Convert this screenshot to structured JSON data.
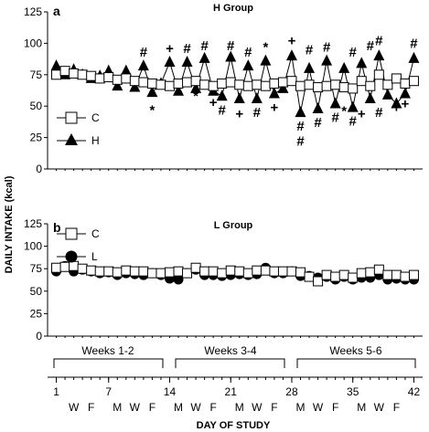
{
  "figure": {
    "ylabel": "DAILY INTAKE  (kcal)",
    "xlabel": "DAY OF STUDY",
    "x_ticks": [
      "1",
      "7",
      "14",
      "21",
      "28",
      "35",
      "42"
    ],
    "weekday_labels": [
      "W",
      "F",
      "M",
      "W",
      "F",
      "M",
      "W",
      "F",
      "M",
      "W",
      "F",
      "M"
    ],
    "week_blocks": [
      "Weeks 1-2",
      "Weeks 3-4",
      "Weeks 5-6"
    ]
  },
  "chart_data": [
    {
      "type": "line",
      "panel": "a",
      "title": "H Group",
      "ylim": [
        0,
        125
      ],
      "y_ticks": [
        0,
        25,
        50,
        75,
        100,
        125
      ],
      "xlim": [
        0,
        43
      ],
      "legend": {
        "placement": "bottom-left",
        "entries": [
          "C",
          "H"
        ]
      },
      "series": [
        {
          "name": "C",
          "marker": "open-square",
          "x": [
            1,
            2,
            3,
            4,
            5,
            6,
            7,
            8,
            9,
            10,
            11,
            12,
            13,
            14,
            15,
            16,
            17,
            18,
            19,
            20,
            21,
            22,
            23,
            24,
            25,
            26,
            27,
            28,
            29,
            30,
            31,
            32,
            33,
            34,
            35,
            36,
            37,
            38,
            39,
            40,
            41,
            42
          ],
          "y": [
            75,
            78,
            76,
            75,
            74,
            72,
            73,
            71,
            72,
            70,
            69,
            68,
            67,
            66,
            68,
            69,
            70,
            67,
            66,
            68,
            69,
            67,
            66,
            67,
            66,
            68,
            69,
            70,
            66,
            67,
            65,
            66,
            67,
            65,
            64,
            70,
            66,
            75,
            67,
            72,
            68,
            70
          ]
        },
        {
          "name": "H",
          "marker": "filled-triangle",
          "x": [
            1,
            2,
            3,
            4,
            5,
            6,
            7,
            8,
            9,
            10,
            11,
            12,
            13,
            14,
            15,
            16,
            17,
            18,
            19,
            20,
            21,
            22,
            23,
            24,
            25,
            26,
            27,
            28,
            29,
            30,
            31,
            32,
            33,
            34,
            35,
            36,
            37,
            38,
            39,
            40,
            41,
            42
          ],
          "y": [
            82,
            75,
            79,
            75,
            72,
            74,
            78,
            66,
            78,
            65,
            82,
            61,
            68,
            85,
            62,
            85,
            64,
            88,
            62,
            58,
            89,
            56,
            82,
            56,
            86,
            60,
            64,
            90,
            45,
            80,
            48,
            86,
            52,
            80,
            49,
            84,
            56,
            90,
            59,
            52,
            60,
            88
          ]
        }
      ],
      "annotations": [
        {
          "x": 11,
          "y": 93,
          "text": "#"
        },
        {
          "x": 12,
          "y": 47,
          "text": "*"
        },
        {
          "x": 14,
          "y": 96,
          "text": "+"
        },
        {
          "x": 16,
          "y": 96,
          "text": "#"
        },
        {
          "x": 17,
          "y": 58,
          "text": "*"
        },
        {
          "x": 18,
          "y": 98,
          "text": "#"
        },
        {
          "x": 19,
          "y": 53,
          "text": "+"
        },
        {
          "x": 20,
          "y": 47,
          "text": "#"
        },
        {
          "x": 21,
          "y": 98,
          "text": "#"
        },
        {
          "x": 22,
          "y": 44,
          "text": "+"
        },
        {
          "x": 23,
          "y": 93,
          "text": "#"
        },
        {
          "x": 24,
          "y": 45,
          "text": "#"
        },
        {
          "x": 25,
          "y": 97,
          "text": "*"
        },
        {
          "x": 26,
          "y": 49,
          "text": "+"
        },
        {
          "x": 28,
          "y": 102,
          "text": "+"
        },
        {
          "x": 29,
          "y": 34,
          "text": "#"
        },
        {
          "x": 29,
          "y": 22,
          "text": "#"
        },
        {
          "x": 30,
          "y": 95,
          "text": "#"
        },
        {
          "x": 31,
          "y": 37,
          "text": "#"
        },
        {
          "x": 32,
          "y": 97,
          "text": "#"
        },
        {
          "x": 33,
          "y": 41,
          "text": "#"
        },
        {
          "x": 34,
          "y": 46,
          "text": "*"
        },
        {
          "x": 35,
          "y": 93,
          "text": "#"
        },
        {
          "x": 35,
          "y": 38,
          "text": "#"
        },
        {
          "x": 36,
          "y": 44,
          "text": "+"
        },
        {
          "x": 37,
          "y": 98,
          "text": "#"
        },
        {
          "x": 38,
          "y": 102,
          "text": "#"
        },
        {
          "x": 38,
          "y": 45,
          "text": "#"
        },
        {
          "x": 40,
          "y": 49,
          "text": "+"
        },
        {
          "x": 41,
          "y": 52,
          "text": "+"
        },
        {
          "x": 42,
          "y": 100,
          "text": "#"
        }
      ]
    },
    {
      "type": "line",
      "panel": "b",
      "title": "L Group",
      "ylim": [
        0,
        125
      ],
      "y_ticks": [
        0,
        25,
        50,
        75,
        100,
        125
      ],
      "xlim": [
        0,
        43
      ],
      "legend": {
        "placement": "top-left",
        "entries": [
          "C",
          "L"
        ]
      },
      "series": [
        {
          "name": "C",
          "marker": "open-square",
          "x": [
            1,
            2,
            3,
            4,
            5,
            6,
            7,
            8,
            9,
            10,
            11,
            12,
            13,
            14,
            15,
            16,
            17,
            18,
            19,
            20,
            21,
            22,
            23,
            24,
            25,
            26,
            27,
            28,
            29,
            30,
            31,
            32,
            33,
            34,
            35,
            36,
            37,
            38,
            39,
            40,
            41,
            42
          ],
          "y": [
            76,
            77,
            78,
            75,
            73,
            72,
            72,
            71,
            73,
            72,
            72,
            70,
            70,
            71,
            72,
            70,
            76,
            72,
            72,
            70,
            73,
            72,
            70,
            73,
            73,
            72,
            72,
            72,
            71,
            66,
            61,
            68,
            66,
            68,
            65,
            70,
            71,
            74,
            68,
            68,
            66,
            68
          ]
        },
        {
          "name": "L",
          "marker": "filled-circle",
          "x": [
            1,
            2,
            3,
            4,
            5,
            6,
            7,
            8,
            9,
            10,
            11,
            12,
            13,
            14,
            15,
            16,
            17,
            18,
            19,
            20,
            21,
            22,
            23,
            24,
            25,
            26,
            27,
            28,
            29,
            30,
            31,
            32,
            33,
            34,
            35,
            36,
            37,
            38,
            39,
            40,
            41,
            42
          ],
          "y": [
            72,
            78,
            72,
            74,
            72,
            70,
            71,
            68,
            70,
            69,
            68,
            70,
            68,
            64,
            63,
            70,
            74,
            68,
            68,
            67,
            68,
            69,
            68,
            69,
            76,
            70,
            70,
            72,
            67,
            67,
            65,
            66,
            63,
            66,
            63,
            65,
            65,
            68,
            63,
            64,
            63,
            63
          ]
        }
      ]
    }
  ]
}
